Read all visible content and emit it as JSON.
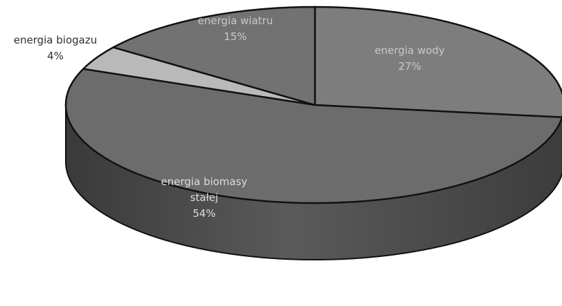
{
  "chart_data": {
    "type": "pie",
    "style": "3d",
    "title": "",
    "categories": [
      "energia wody",
      "energia biomasy stałej",
      "energia biogazu",
      "energia wiatru"
    ],
    "values": [
      27,
      54,
      4,
      15
    ],
    "labels": [
      {
        "category": "energia wody",
        "lines": [
          "energia wody"
        ],
        "percent": "27%",
        "color": "#c9c9c9"
      },
      {
        "category": "energia biomasy stałej",
        "lines": [
          "energia biomasy",
          "stałej"
        ],
        "percent": "54%",
        "color": "#dcdcdc"
      },
      {
        "category": "energia biogazu",
        "lines": [
          "energia biogazu"
        ],
        "percent": "4%",
        "color": "#2f2f2f"
      },
      {
        "category": "energia wiatru",
        "lines": [
          "energia wiatru"
        ],
        "percent": "15%",
        "color": "#c9c9c9"
      }
    ],
    "slice_colors": [
      "#7d7d7d",
      "#6c6c6c",
      "#b9b9b9",
      "#727272"
    ],
    "side_color": "#4a4a4a",
    "outline_color": "#111111",
    "legend": "none"
  }
}
